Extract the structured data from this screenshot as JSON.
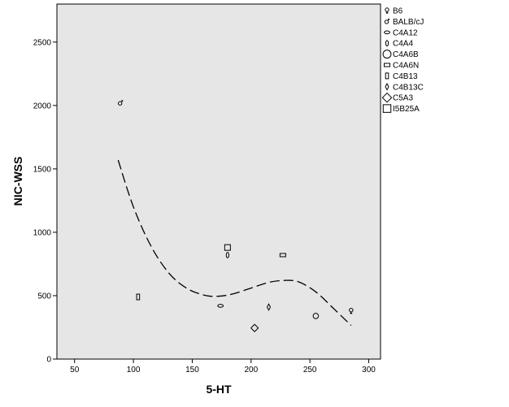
{
  "chart_data": {
    "type": "scatter",
    "xlabel": "5-HT",
    "ylabel": "NIC-WSS",
    "xlim": [
      35,
      310
    ],
    "ylim": [
      0,
      2800
    ],
    "x_ticks": [
      50,
      100,
      150,
      200,
      250,
      300
    ],
    "y_ticks": [
      0,
      500,
      1000,
      1500,
      2000,
      2500
    ],
    "grid": false,
    "legend_position": "right",
    "colors": {
      "plot_bg": "#e6e6e6",
      "marker": "#000000",
      "fit_line": "#000000"
    },
    "series": [
      {
        "name": "B6",
        "marker": "female",
        "x": [
          285
        ],
        "y": [
          380
        ]
      },
      {
        "name": "BALB/cJ",
        "marker": "male",
        "x": [
          89
        ],
        "y": [
          2020
        ]
      },
      {
        "name": "C4A12",
        "marker": "ellipse-horizontal",
        "x": [
          174
        ],
        "y": [
          420
        ]
      },
      {
        "name": "C4A4",
        "marker": "ellipse-vertical",
        "x": [
          180
        ],
        "y": [
          820
        ]
      },
      {
        "name": "C4A6B",
        "marker": "circle",
        "x": [
          255
        ],
        "y": [
          340
        ]
      },
      {
        "name": "C4A6N",
        "marker": "rect-horizontal",
        "x": [
          227
        ],
        "y": [
          820
        ]
      },
      {
        "name": "C4B13",
        "marker": "rect-vertical",
        "x": [
          104
        ],
        "y": [
          490
        ]
      },
      {
        "name": "C4B13C",
        "marker": "diamond-narrow",
        "x": [
          215
        ],
        "y": [
          410
        ]
      },
      {
        "name": "C5A3",
        "marker": "diamond",
        "x": [
          203
        ],
        "y": [
          245
        ]
      },
      {
        "name": "I5B25A",
        "marker": "square",
        "x": [
          180
        ],
        "y": [
          880
        ]
      }
    ],
    "fit_line": {
      "style": "dashed",
      "x": [
        87,
        100,
        115,
        130,
        145,
        160,
        172,
        185,
        200,
        215,
        228,
        240,
        255,
        270,
        285
      ],
      "y": [
        1570,
        1200,
        890,
        680,
        560,
        505,
        495,
        515,
        560,
        605,
        620,
        610,
        530,
        400,
        265
      ]
    }
  }
}
